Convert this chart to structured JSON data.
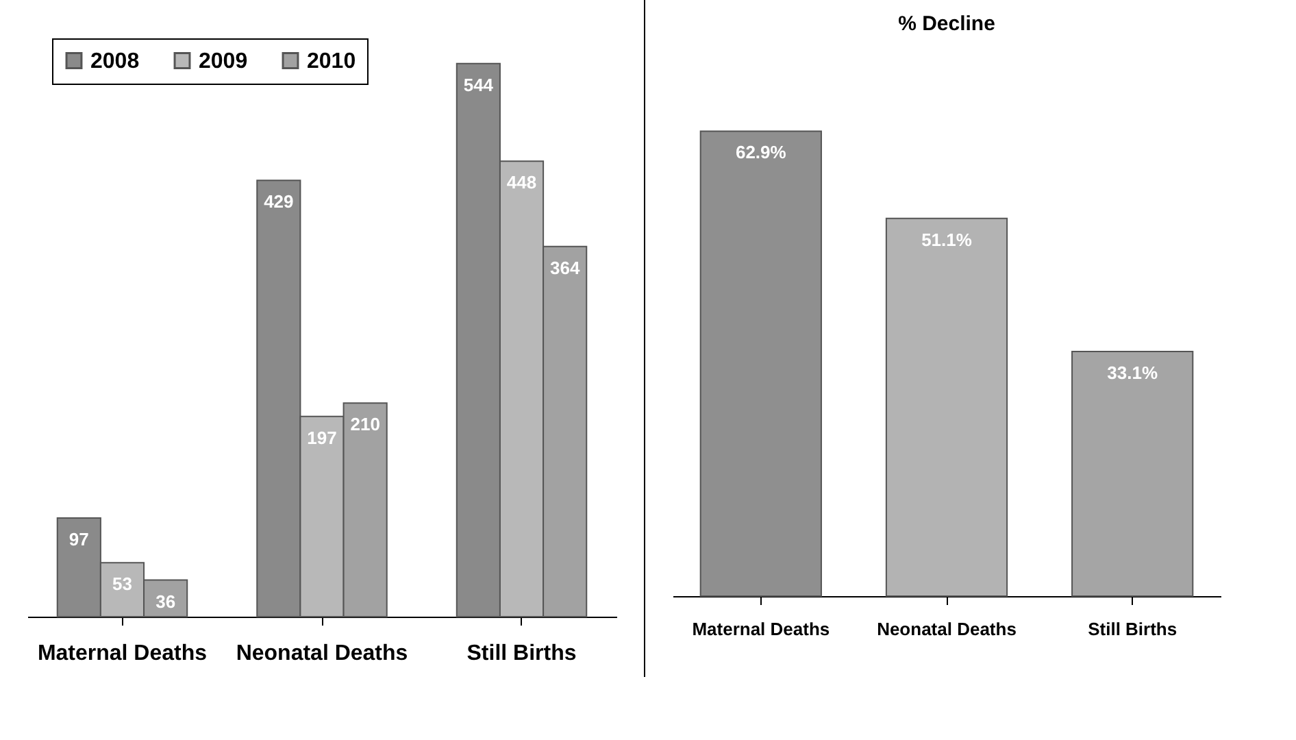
{
  "chart_data": [
    {
      "type": "bar",
      "categories": [
        "Maternal Deaths",
        "Neonatal Deaths",
        "Still Births"
      ],
      "series": [
        {
          "name": "2008",
          "color": "#8a8a8a",
          "values": [
            97,
            429,
            544
          ]
        },
        {
          "name": "2009",
          "color": "#b8b8b8",
          "values": [
            53,
            197,
            448
          ]
        },
        {
          "name": "2010",
          "color": "#a2a2a2",
          "values": [
            36,
            210,
            364
          ]
        }
      ],
      "data_labels": true,
      "legend": "top left"
    },
    {
      "type": "bar",
      "title": "% Decline",
      "categories": [
        "Maternal Deaths",
        "Neonatal Deaths",
        "Still Births"
      ],
      "values": [
        62.9,
        51.1,
        33.1
      ],
      "value_labels": [
        "62.9%",
        "51.1%",
        "33.1%"
      ],
      "colors": [
        "#8f8f8f",
        "#b3b3b3",
        "#a5a5a5"
      ]
    }
  ]
}
